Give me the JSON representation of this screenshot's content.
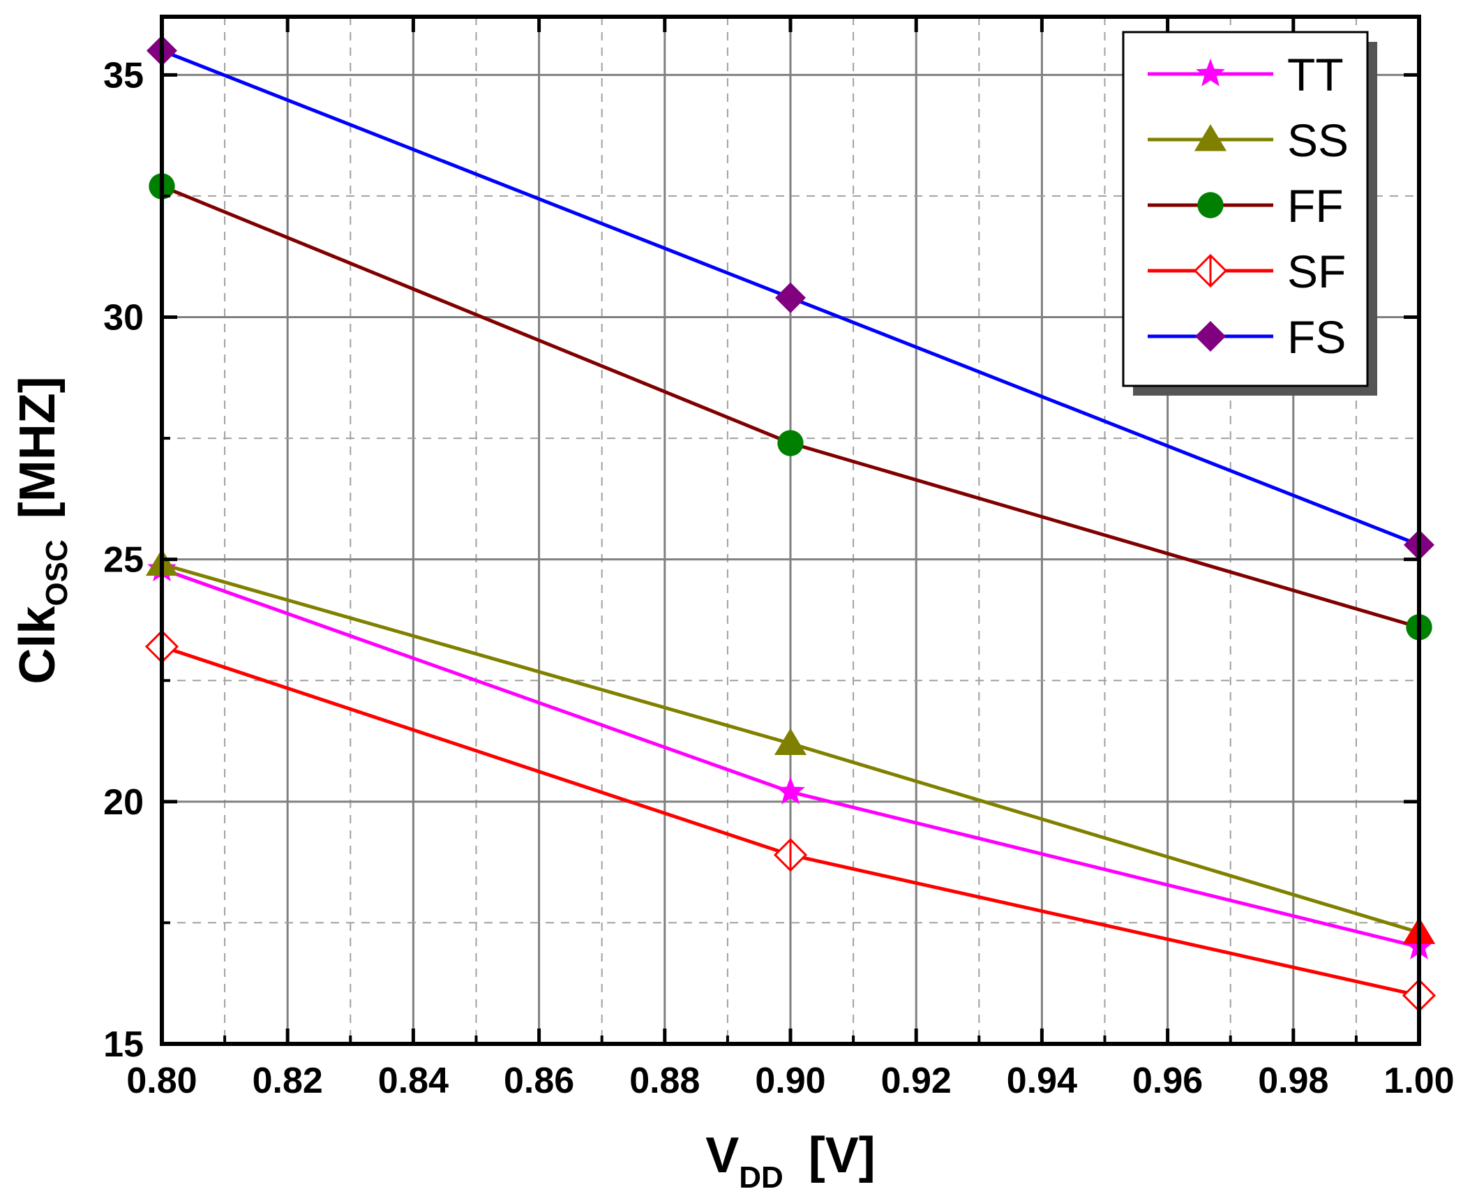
{
  "chart_data": {
    "type": "line",
    "xlabel": {
      "main": "V",
      "sub": "DD",
      "unit": "[V]"
    },
    "ylabel": {
      "main": "Clk",
      "sub": "OSC",
      "unit": "[MHZ]"
    },
    "xlim": [
      0.8,
      1.0
    ],
    "ylim": [
      15,
      36.2
    ],
    "xticks": [
      "0.80",
      "0.82",
      "0.84",
      "0.86",
      "0.88",
      "0.90",
      "0.92",
      "0.94",
      "0.96",
      "0.98",
      "1.00"
    ],
    "yticks": [
      "15",
      "20",
      "25",
      "30",
      "35"
    ],
    "grid": true,
    "legend_position": "top-right",
    "x": [
      0.8,
      0.9,
      1.0
    ],
    "series": [
      {
        "name": "TT",
        "values": [
          24.8,
          20.2,
          17.0
        ],
        "color": "#ff00ff",
        "marker": "star"
      },
      {
        "name": "SS",
        "values": [
          24.9,
          21.2,
          17.3
        ],
        "color": "#808000",
        "marker": "triangle"
      },
      {
        "name": "FF",
        "values": [
          32.7,
          27.4,
          23.6
        ],
        "color": "#800000",
        "marker_color": "#008000",
        "marker": "circle"
      },
      {
        "name": "SF",
        "values": [
          23.2,
          18.9,
          16.0
        ],
        "color": "#ff0000",
        "marker": "half-diamond-open"
      },
      {
        "name": "FS",
        "values": [
          35.5,
          30.4,
          25.3
        ],
        "color": "#0000ff",
        "marker_color": "#800080",
        "marker": "diamond"
      }
    ],
    "extra_markers": [
      {
        "x": 1.0,
        "y": 17.3,
        "color": "#ff0000",
        "marker": "triangle"
      }
    ]
  }
}
